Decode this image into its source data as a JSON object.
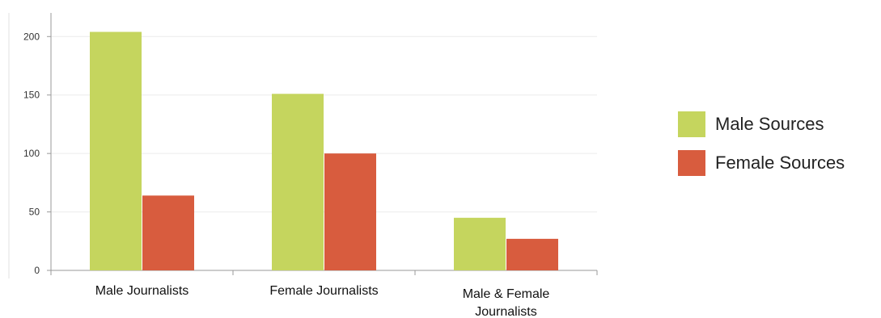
{
  "chart_data": {
    "type": "bar",
    "title": "",
    "xlabel": "",
    "ylabel": "",
    "categories": [
      [
        "Male Journalists"
      ],
      [
        "Female Journalists"
      ],
      [
        "Male & Female",
        "Journalists"
      ]
    ],
    "series": [
      {
        "name": "Male Sources",
        "color": "#c5d55e",
        "values": [
          204,
          151,
          45
        ]
      },
      {
        "name": "Female Sources",
        "color": "#d85c3e",
        "values": [
          64,
          100,
          27
        ]
      }
    ],
    "ylim": [
      0,
      220
    ],
    "yticks": [
      0,
      50,
      100,
      150,
      200
    ],
    "grid": true,
    "legend_position": "right"
  }
}
